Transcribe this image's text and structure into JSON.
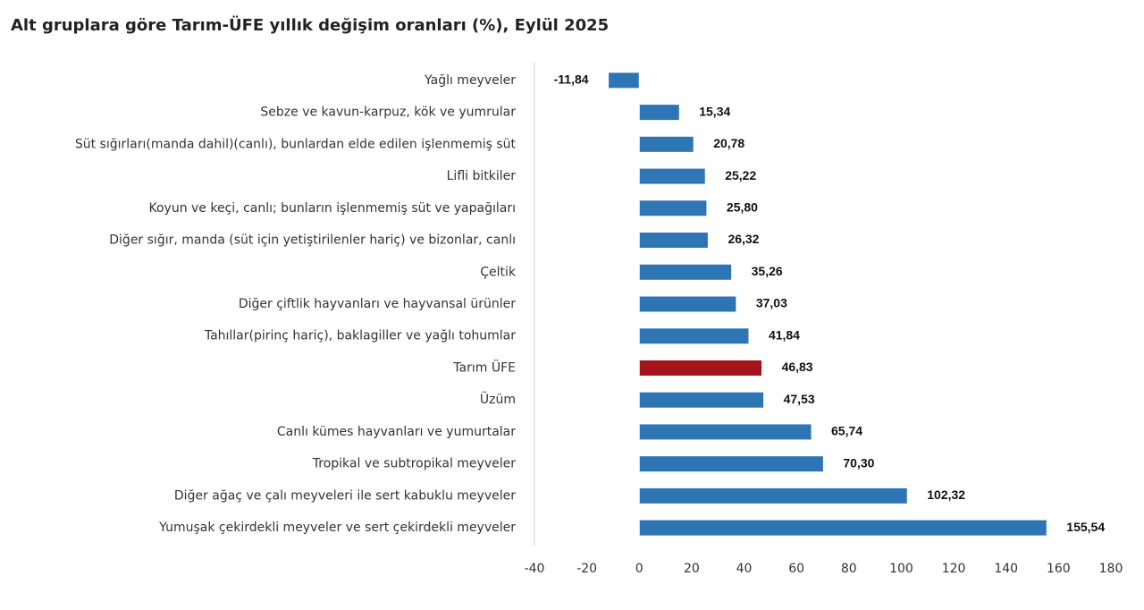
{
  "chart_data": {
    "type": "barh",
    "title": "Alt gruplara göre Tarım-ÜFE yıllık değişim oranları (%), Eylül 2025",
    "categories": [
      "Yağlı meyveler",
      "Sebze ve kavun-karpuz, kök ve yumrular",
      "Süt sığırları(manda dahil)(canlı), bunlardan elde edilen işlenmemiş süt",
      "Lifli bitkiler",
      "Koyun ve keçi, canlı; bunların işlenmemiş süt ve yapağıları",
      "Diğer sığır, manda (süt için yetiştirilenler hariç) ve bizonlar, canlı",
      "Çeltik",
      "Diğer çiftlik hayvanları ve hayvansal ürünler",
      "Tahıllar(pirinç hariç), baklagiller ve yağlı tohumlar",
      "Tarım ÜFE",
      "Üzüm",
      "Canlı kümes hayvanları ve yumurtalar",
      "Tropikal ve subtropikal meyveler",
      "Diğer ağaç ve çalı meyveleri ile sert kabuklu meyveler",
      "Yumuşak çekirdekli meyveler ve sert çekirdekli meyveler"
    ],
    "values": [
      -11.84,
      15.34,
      20.78,
      25.22,
      25.8,
      26.32,
      35.26,
      37.03,
      41.84,
      46.83,
      47.53,
      65.74,
      70.3,
      102.32,
      155.54
    ],
    "value_labels": [
      "-11,84",
      "15,34",
      "20,78",
      "25,22",
      "25,80",
      "26,32",
      "35,26",
      "37,03",
      "41,84",
      "46,83",
      "47,53",
      "65,74",
      "70,30",
      "102,32",
      "155,54"
    ],
    "colors": [
      "#2e75b6",
      "#2e75b6",
      "#2e75b6",
      "#2e75b6",
      "#2e75b6",
      "#2e75b6",
      "#2e75b6",
      "#2e75b6",
      "#2e75b6",
      "#a5141a",
      "#2e75b6",
      "#2e75b6",
      "#2e75b6",
      "#2e75b6",
      "#2e75b6"
    ],
    "xlim": [
      -40,
      180
    ],
    "xticks": [
      -40,
      -20,
      0,
      20,
      40,
      60,
      80,
      100,
      120,
      140,
      160,
      180
    ]
  }
}
